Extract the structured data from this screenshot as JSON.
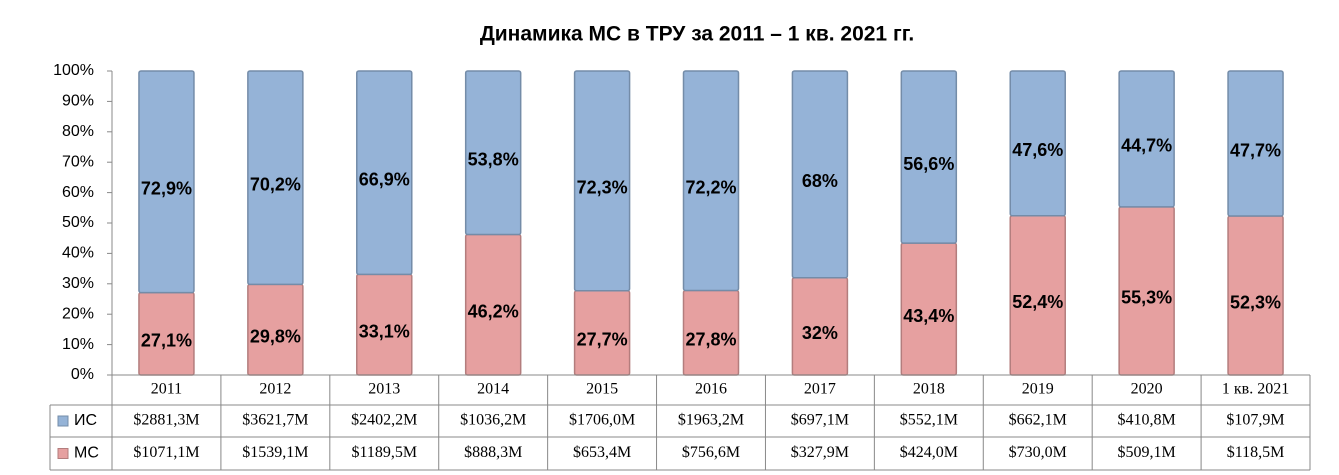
{
  "chart_data": {
    "type": "stacked_bar_100",
    "title": "Динамика МС в ТРУ за 2011 – 1 кв. 2021 гг.",
    "categories": [
      "2011",
      "2012",
      "2013",
      "2014",
      "2015",
      "2016",
      "2017",
      "2018",
      "2019",
      "2020",
      "1 кв. 2021"
    ],
    "series": [
      {
        "name": "ИС",
        "color": "#95b3d7",
        "values": [
          72.9,
          70.2,
          66.9,
          53.8,
          72.3,
          72.2,
          68,
          56.6,
          47.6,
          44.7,
          47.7
        ],
        "value_labels": [
          "72,9%",
          "70,2%",
          "66,9%",
          "53,8%",
          "72,3%",
          "72,2%",
          "68%",
          "56,6%",
          "47,6%",
          "44,7%",
          "47,7%"
        ],
        "amounts": [
          "$2881,3M",
          "$3621,7M",
          "$2402,2M",
          "$1036,2M",
          "$1706,0M",
          "$1963,2M",
          "$697,1M",
          "$552,1M",
          "$662,1M",
          "$410,8M",
          "$107,9M"
        ]
      },
      {
        "name": "МС",
        "color": "#e6a0a0",
        "values": [
          27.1,
          29.8,
          33.1,
          46.2,
          27.7,
          27.8,
          32,
          43.4,
          52.4,
          55.3,
          52.3
        ],
        "value_labels": [
          "27,1%",
          "29,8%",
          "33,1%",
          "46,2%",
          "27,7%",
          "27,8%",
          "32%",
          "43,4%",
          "52,4%",
          "55,3%",
          "52,3%"
        ],
        "amounts": [
          "$1071,1M",
          "$1539,1M",
          "$1189,5M",
          "$888,3M",
          "$653,4M",
          "$756,6M",
          "$327,9M",
          "$424,0M",
          "$730,0M",
          "$509,1M",
          "$118,5M"
        ]
      }
    ],
    "ylim": [
      0,
      100
    ],
    "yticks": [
      {
        "value": 0,
        "label": "0%"
      },
      {
        "value": 10,
        "label": "10%"
      },
      {
        "value": 20,
        "label": "20%"
      },
      {
        "value": 30,
        "label": "30%"
      },
      {
        "value": 40,
        "label": "40%"
      },
      {
        "value": 50,
        "label": "50%"
      },
      {
        "value": 60,
        "label": "60%"
      },
      {
        "value": 70,
        "label": "70%"
      },
      {
        "value": 80,
        "label": "80%"
      },
      {
        "value": 90,
        "label": "90%"
      },
      {
        "value": 100,
        "label": "100%"
      }
    ],
    "grid": false
  }
}
